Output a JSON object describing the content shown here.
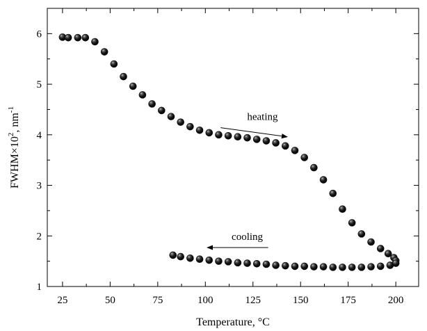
{
  "chart_data": {
    "type": "scatter",
    "title": "",
    "xlabel": "Temperature, °C",
    "ylabel": {
      "prefix": "FWHM×10",
      "exp1": "2",
      "mid": ", nm",
      "exp2": "-1"
    },
    "xlim": [
      17,
      212
    ],
    "ylim": [
      1,
      6.5
    ],
    "xticks": [
      25,
      50,
      75,
      100,
      125,
      150,
      175,
      200
    ],
    "yticks": [
      1,
      2,
      3,
      4,
      5,
      6
    ],
    "grid": false,
    "legend": "none",
    "marker_color": "#111111",
    "series": [
      {
        "label": "heating",
        "points": [
          [
            25,
            5.93
          ],
          [
            28,
            5.92
          ],
          [
            33,
            5.92
          ],
          [
            37,
            5.92
          ],
          [
            42,
            5.84
          ],
          [
            47,
            5.64
          ],
          [
            52,
            5.4
          ],
          [
            57,
            5.15
          ],
          [
            62,
            4.96
          ],
          [
            67,
            4.79
          ],
          [
            72,
            4.61
          ],
          [
            77,
            4.48
          ],
          [
            82,
            4.36
          ],
          [
            87,
            4.25
          ],
          [
            92,
            4.16
          ],
          [
            97,
            4.09
          ],
          [
            102,
            4.04
          ],
          [
            107,
            4.0
          ],
          [
            112,
            3.98
          ],
          [
            117,
            3.96
          ],
          [
            122,
            3.94
          ],
          [
            127,
            3.91
          ],
          [
            132,
            3.88
          ],
          [
            137,
            3.84
          ],
          [
            142,
            3.78
          ],
          [
            147,
            3.69
          ],
          [
            152,
            3.55
          ],
          [
            157,
            3.35
          ],
          [
            162,
            3.11
          ],
          [
            167,
            2.84
          ],
          [
            172,
            2.53
          ],
          [
            177,
            2.26
          ],
          [
            182,
            2.04
          ],
          [
            187,
            1.88
          ],
          [
            192,
            1.75
          ],
          [
            196,
            1.65
          ],
          [
            199,
            1.57
          ],
          [
            200,
            1.51
          ]
        ]
      },
      {
        "label": "cooling",
        "points": [
          [
            200,
            1.46
          ],
          [
            197,
            1.42
          ],
          [
            192,
            1.4
          ],
          [
            187,
            1.39
          ],
          [
            182,
            1.38
          ],
          [
            177,
            1.38
          ],
          [
            172,
            1.38
          ],
          [
            167,
            1.38
          ],
          [
            162,
            1.39
          ],
          [
            157,
            1.39
          ],
          [
            152,
            1.4
          ],
          [
            147,
            1.4
          ],
          [
            142,
            1.41
          ],
          [
            137,
            1.42
          ],
          [
            132,
            1.44
          ],
          [
            127,
            1.45
          ],
          [
            122,
            1.46
          ],
          [
            117,
            1.47
          ],
          [
            112,
            1.49
          ],
          [
            107,
            1.5
          ],
          [
            102,
            1.52
          ],
          [
            97,
            1.54
          ],
          [
            92,
            1.56
          ],
          [
            87,
            1.59
          ],
          [
            83,
            1.62
          ]
        ]
      }
    ],
    "annotations": [
      {
        "text": "heating",
        "x": 130,
        "y": 4.29,
        "arrow_from": [
          108,
          4.14
        ],
        "arrow_to": [
          143,
          3.96
        ]
      },
      {
        "text": "cooling",
        "x": 122,
        "y": 1.92,
        "arrow_from": [
          133,
          1.77
        ],
        "arrow_to": [
          101,
          1.77
        ]
      }
    ]
  }
}
